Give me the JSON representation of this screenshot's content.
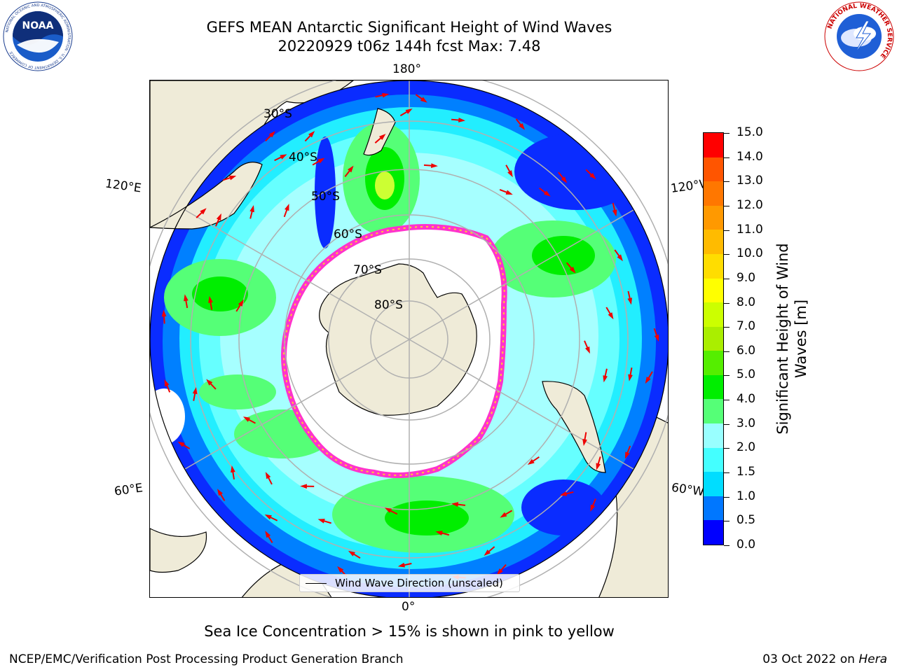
{
  "title": {
    "line1": "GEFS MEAN Antarctic Significant Height of Wind Waves",
    "line2": "20220929 t06z 144h fcst   Max: 7.48"
  },
  "logos": {
    "left_icon": "noaa-logo",
    "left_text": "NOAA",
    "left_ring_text": "NATIONAL OCEANIC AND ATMOSPHERIC ADMINISTRATION · U.S. DEPARTMENT OF COMMERCE",
    "right_icon": "nws-logo",
    "right_ring_text": "NATIONAL WEATHER SERVICE"
  },
  "map": {
    "projection": "south-polar-stereographic",
    "longitude_labels": [
      "180°",
      "120°E",
      "120°W",
      "60°E",
      "60°W",
      "0°"
    ],
    "latitude_labels": [
      "30°S",
      "40°S",
      "50°S",
      "60°S",
      "70°S",
      "80°S"
    ],
    "colors": {
      "land": "#efebd8",
      "ice_edge": "#ff33cc",
      "ice_inner": "#ffcc33",
      "arrow": "#ee0000",
      "grid": "#b0b0b0"
    },
    "legend_label": "Wind Wave Direction (unscaled)"
  },
  "colorbar": {
    "label": "Significant Height of Wind Waves [m]",
    "ticks": [
      "0.0",
      "0.5",
      "1.0",
      "1.5",
      "2.0",
      "3.0",
      "4.0",
      "5.0",
      "6.0",
      "7.0",
      "8.0",
      "9.0",
      "10.0",
      "11.0",
      "12.0",
      "13.0",
      "14.0",
      "15.0"
    ],
    "colors": [
      "#0000ff",
      "#0077ff",
      "#00ddff",
      "#44ffff",
      "#99ffff",
      "#55ff77",
      "#00ee00",
      "#55ee00",
      "#aaee00",
      "#ccff00",
      "#ffff00",
      "#ffdd00",
      "#ffbb00",
      "#ff9900",
      "#ff7700",
      "#ff5500",
      "#ff0000"
    ]
  },
  "footnote": "Sea Ice Concentration > 15% is shown in pink to yellow",
  "credits": {
    "left": "NCEP/EMC/Verification Post Processing Product Generation Branch",
    "right_date": "03 Oct 2022 on ",
    "right_machine": "Hera"
  }
}
